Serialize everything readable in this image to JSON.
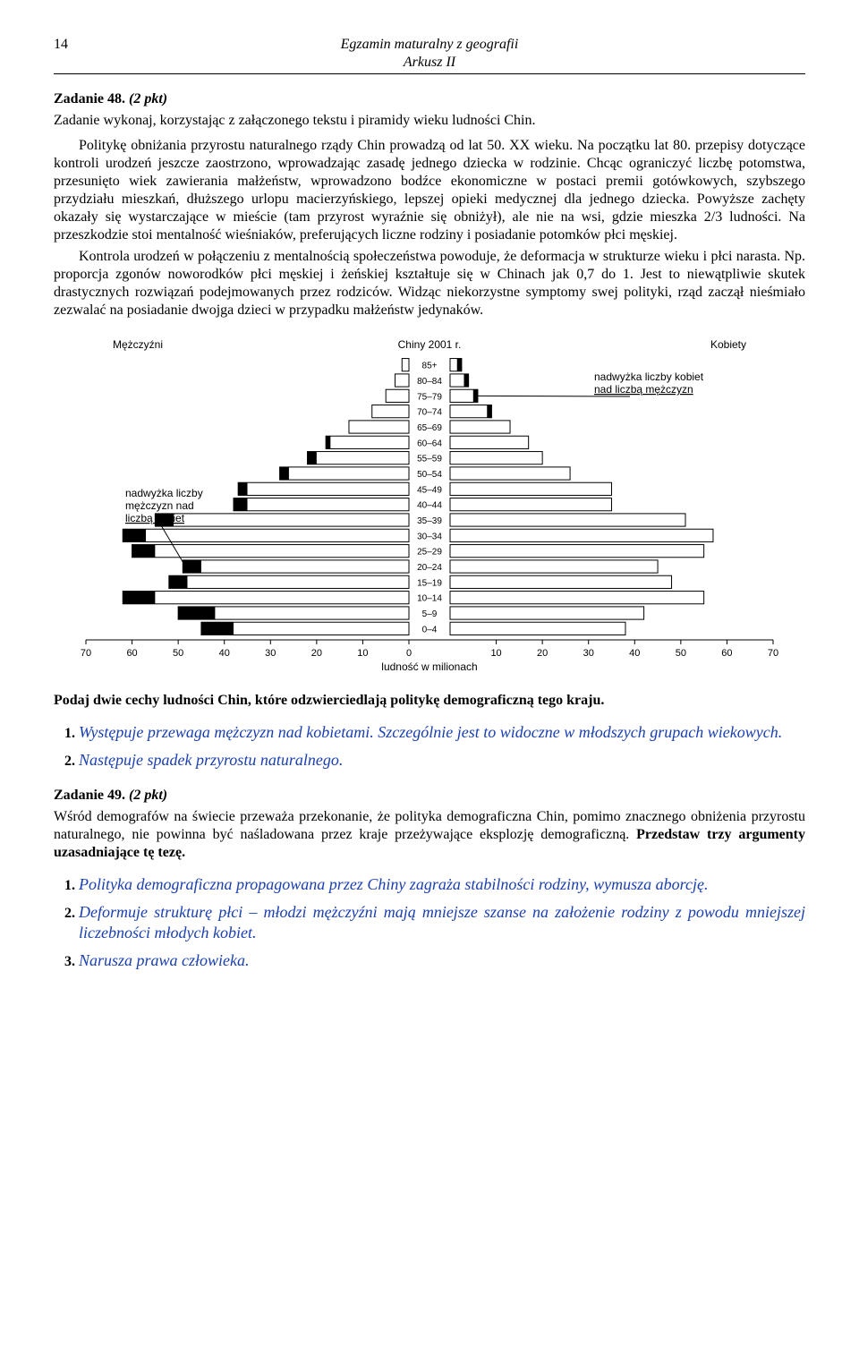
{
  "header": {
    "page_number": "14",
    "exam_line1": "Egzamin maturalny z geografii",
    "exam_line2": "Arkusz II"
  },
  "task48": {
    "title_label": "Zadanie 48.",
    "points": "(2 pkt)",
    "instruction": "Zadanie wykonaj, korzystając z załączonego tekstu i piramidy wieku ludności Chin.",
    "para1": "Politykę obniżania przyrostu naturalnego rządy Chin prowadzą od lat 50. XX wieku. Na początku lat 80. przepisy dotyczące kontroli urodzeń jeszcze zaostrzono, wprowadzając zasadę jednego dziecka w rodzinie. Chcąc ograniczyć liczbę potomstwa, przesunięto wiek zawierania małżeństw, wprowadzono bodźce ekonomiczne w postaci premii gotówkowych, szybszego przydziału mieszkań, dłuższego urlopu macierzyńskiego, lepszej opieki medycznej dla jednego dziecka. Powyższe zachęty okazały się wystarczające w mieście (tam przyrost wyraźnie się obniżył), ale nie na wsi, gdzie mieszka 2/3 ludności. Na przeszkodzie stoi mentalność wieśniaków, preferujących liczne rodziny i posiadanie potomków płci męskiej.",
    "para2": "Kontrola urodzeń w połączeniu z mentalnością społeczeństwa powoduje, że deformacja w strukturze wieku i płci narasta. Np. proporcja zgonów noworodków płci męskiej i żeńskiej kształtuje się w Chinach jak 0,7 do 1. Jest to niewątpliwie skutek drastycznych rozwiązań podejmowanych przez rodziców. Widząc niekorzystne symptomy swej polityki, rząd zaczął nieśmiało zezwalać na posiadanie dwojga dzieci w przypadku małżeństw jedynaków.",
    "question": "Podaj dwie cechy ludności Chin, które odzwierciedlają politykę demograficzną tego kraju.",
    "answers": [
      "Występuje przewaga mężczyzn nad kobietami. Szczególnie jest to widoczne w młodszych grupach wiekowych.",
      "Następuje spadek przyrostu naturalnego."
    ]
  },
  "pyramid": {
    "title_left": "Mężczyźni",
    "title_center": "Chiny 2001 r.",
    "title_right": "Kobiety",
    "x_label": "ludność w milionach",
    "callout_left_l1": "nadwyżka liczby",
    "callout_left_l2": "mężczyzn nad",
    "callout_left_l3": "liczbą kobiet",
    "callout_right_l1": "nadwyżka liczby kobiet",
    "callout_right_l2": "nad liczbą mężczyzn",
    "age_labels": [
      "85+",
      "80–84",
      "75–79",
      "70–74",
      "65–69",
      "60–64",
      "55–59",
      "50–54",
      "45–49",
      "40–44",
      "35–39",
      "30–34",
      "25–29",
      "20–24",
      "15–19",
      "10–14",
      "5–9",
      "0–4"
    ],
    "male": [
      1.5,
      3,
      5,
      8,
      13,
      18,
      22,
      28,
      37,
      38,
      55,
      62,
      60,
      49,
      52,
      62,
      50,
      45
    ],
    "female": [
      2.5,
      4,
      6,
      9,
      13,
      17,
      20,
      26,
      35,
      35,
      51,
      57,
      55,
      45,
      48,
      55,
      42,
      38
    ],
    "male_surplus": [
      0,
      0,
      0,
      0,
      0,
      1,
      2,
      2,
      2,
      3,
      4,
      5,
      5,
      4,
      4,
      7,
      8,
      7
    ],
    "female_surplus": [
      1,
      1,
      1,
      1,
      0,
      0,
      0,
      0,
      0,
      0,
      0,
      0,
      0,
      0,
      0,
      0,
      0,
      0
    ],
    "x_ticks": [
      70,
      60,
      50,
      40,
      30,
      20,
      10,
      0,
      10,
      20,
      30,
      40,
      50,
      60,
      70
    ],
    "colors": {
      "bar_fill": "#ffffff",
      "bar_stroke": "#000000",
      "surplus_fill": "#000000",
      "text": "#000000"
    }
  },
  "task49": {
    "title_label": "Zadanie 49.",
    "points": "(2 pkt)",
    "body_plain": "Wśród demografów na świecie przeważa przekonanie, że polityka demograficzna Chin, pomimo znacznego obniżenia przyrostu naturalnego, nie powinna być naśladowana przez kraje przeżywające eksplozję demograficzną. ",
    "body_bold": "Przedstaw trzy argumenty uzasadniające tę tezę.",
    "answers": [
      "Polityka demograficzna propagowana przez Chiny zagraża stabilności rodziny, wymusza aborcję.",
      "Deformuje strukturę płci – młodzi mężczyźni mają mniejsze szanse na założenie rodziny z powodu mniejszej liczebności młodych kobiet.",
      "Narusza prawa człowieka."
    ]
  }
}
